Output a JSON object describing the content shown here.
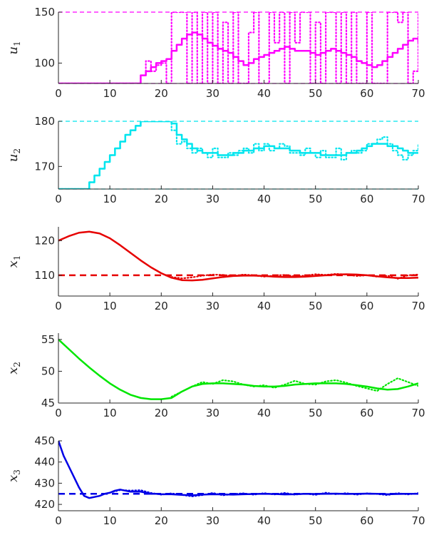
{
  "chart_data": [
    {
      "type": "line",
      "ylabel": "u",
      "ylabel_sub": "1",
      "xlim": [
        0,
        70
      ],
      "ylim": [
        80,
        150
      ],
      "xticks": [
        0,
        10,
        20,
        30,
        40,
        50,
        60,
        70
      ],
      "yticks": [
        100,
        150
      ],
      "color": "#ff00ff",
      "bounds": [
        80,
        150
      ],
      "series": [
        {
          "style": "solid",
          "step": true,
          "x": [
            0,
            1,
            2,
            3,
            4,
            5,
            6,
            7,
            8,
            9,
            10,
            11,
            12,
            13,
            14,
            15,
            16,
            17,
            18,
            19,
            20,
            21,
            22,
            23,
            24,
            25,
            26,
            27,
            28,
            29,
            30,
            31,
            32,
            33,
            34,
            35,
            36,
            37,
            38,
            39,
            40,
            41,
            42,
            43,
            44,
            45,
            46,
            47,
            48,
            49,
            50,
            51,
            52,
            53,
            54,
            55,
            56,
            57,
            58,
            59,
            60,
            61,
            62,
            63,
            64,
            65,
            66,
            67,
            68,
            69,
            70
          ],
          "values": [
            80,
            80,
            80,
            80,
            80,
            80,
            80,
            80,
            80,
            80,
            80,
            80,
            80,
            80,
            80,
            80,
            88,
            92,
            96,
            100,
            102,
            104,
            112,
            118,
            124,
            128,
            130,
            128,
            124,
            120,
            117,
            114,
            112,
            110,
            106,
            102,
            98,
            100,
            104,
            106,
            108,
            110,
            112,
            114,
            116,
            114,
            112,
            112,
            112,
            110,
            108,
            110,
            112,
            114,
            112,
            110,
            108,
            106,
            102,
            100,
            98,
            96,
            98,
            102,
            106,
            110,
            114,
            118,
            122,
            124,
            120
          ]
        },
        {
          "style": "dotted",
          "step": true,
          "x": [
            0,
            1,
            2,
            3,
            4,
            5,
            6,
            7,
            8,
            9,
            10,
            11,
            12,
            13,
            14,
            15,
            16,
            17,
            18,
            19,
            20,
            21,
            22,
            23,
            24,
            25,
            26,
            27,
            28,
            29,
            30,
            31,
            32,
            33,
            34,
            35,
            36,
            37,
            38,
            39,
            40,
            41,
            42,
            43,
            44,
            45,
            46,
            47,
            48,
            49,
            50,
            51,
            52,
            53,
            54,
            55,
            56,
            57,
            58,
            59,
            60,
            61,
            62,
            63,
            64,
            65,
            66,
            67,
            68,
            69,
            70
          ],
          "values": [
            80,
            80,
            80,
            80,
            80,
            80,
            80,
            80,
            80,
            80,
            80,
            80,
            80,
            80,
            80,
            80,
            88,
            102,
            92,
            98,
            100,
            80,
            150,
            150,
            150,
            80,
            150,
            80,
            150,
            80,
            150,
            80,
            140,
            80,
            150,
            80,
            80,
            130,
            150,
            80,
            80,
            150,
            120,
            150,
            80,
            150,
            120,
            150,
            150,
            80,
            140,
            80,
            150,
            150,
            80,
            150,
            80,
            150,
            80,
            80,
            150,
            80,
            80,
            80,
            150,
            150,
            140,
            150,
            80,
            92,
            150
          ]
        }
      ]
    },
    {
      "type": "line",
      "ylabel": "u",
      "ylabel_sub": "2",
      "xlim": [
        0,
        70
      ],
      "ylim": [
        165,
        180
      ],
      "xticks": [
        0,
        10,
        20,
        30,
        40,
        50,
        60,
        70
      ],
      "yticks": [
        170,
        180
      ],
      "color": "#00e5ee",
      "bounds": [
        165,
        180
      ],
      "series": [
        {
          "style": "solid",
          "step": true,
          "x": [
            0,
            1,
            2,
            3,
            4,
            5,
            6,
            7,
            8,
            9,
            10,
            11,
            12,
            13,
            14,
            15,
            16,
            17,
            18,
            19,
            20,
            21,
            22,
            23,
            24,
            25,
            26,
            27,
            28,
            29,
            30,
            31,
            32,
            33,
            34,
            35,
            36,
            37,
            38,
            39,
            40,
            41,
            42,
            43,
            44,
            45,
            46,
            47,
            48,
            49,
            50,
            51,
            52,
            53,
            54,
            55,
            56,
            57,
            58,
            59,
            60,
            61,
            62,
            63,
            64,
            65,
            66,
            67,
            68,
            69,
            70
          ],
          "values": [
            165,
            165,
            165,
            165,
            165,
            165,
            166.5,
            168,
            169.5,
            171,
            172.5,
            174,
            175.5,
            177,
            178,
            179,
            180,
            180,
            180,
            180,
            180,
            180,
            179.5,
            177,
            176,
            175,
            174,
            173.5,
            173,
            173,
            173,
            172.5,
            172.5,
            172.5,
            173,
            173,
            173.5,
            173.5,
            174,
            174,
            174.5,
            174.5,
            174,
            174,
            174,
            173.5,
            173.5,
            173,
            173,
            173,
            173,
            172.5,
            172.5,
            172.5,
            172.5,
            172.5,
            173,
            173,
            173.5,
            174,
            174.5,
            175,
            175,
            175,
            174.5,
            174.5,
            174,
            173.5,
            173,
            173,
            173
          ]
        },
        {
          "style": "dotted",
          "step": true,
          "x": [
            0,
            1,
            2,
            3,
            4,
            5,
            6,
            7,
            8,
            9,
            10,
            11,
            12,
            13,
            14,
            15,
            16,
            17,
            18,
            19,
            20,
            21,
            22,
            23,
            24,
            25,
            26,
            27,
            28,
            29,
            30,
            31,
            32,
            33,
            34,
            35,
            36,
            37,
            38,
            39,
            40,
            41,
            42,
            43,
            44,
            45,
            46,
            47,
            48,
            49,
            50,
            51,
            52,
            53,
            54,
            55,
            56,
            57,
            58,
            59,
            60,
            61,
            62,
            63,
            64,
            65,
            66,
            67,
            68,
            69,
            70
          ],
          "values": [
            165,
            165,
            165,
            165,
            165,
            165,
            166.5,
            168,
            169.5,
            171,
            172.5,
            174,
            175.5,
            177,
            178,
            179,
            180,
            180,
            180,
            180,
            180,
            180,
            178,
            175,
            175.5,
            174,
            173,
            174,
            173,
            172,
            174,
            172,
            172,
            173,
            172.5,
            173.5,
            174,
            173,
            175,
            173.5,
            175,
            173.5,
            174,
            175,
            174.5,
            173,
            173,
            172.5,
            174,
            173,
            172,
            173.5,
            172,
            172,
            174,
            171.5,
            173,
            173.5,
            173,
            173.5,
            175,
            175,
            176,
            176.5,
            175,
            173.5,
            172.5,
            171.5,
            172.5,
            173.5,
            175
          ]
        }
      ]
    },
    {
      "type": "line",
      "ylabel": "x",
      "ylabel_sub": "1",
      "xlim": [
        0,
        70
      ],
      "ylim": [
        104,
        124
      ],
      "xticks": [
        0,
        10,
        20,
        30,
        40,
        50,
        60,
        70
      ],
      "yticks": [
        110,
        120
      ],
      "color": "#e60000",
      "setpoint": 110,
      "series": [
        {
          "style": "solid",
          "step": false,
          "x": [
            0,
            2,
            4,
            6,
            8,
            10,
            12,
            14,
            16,
            18,
            20,
            22,
            24,
            26,
            28,
            30,
            32,
            34,
            36,
            38,
            40,
            42,
            44,
            46,
            48,
            50,
            52,
            54,
            56,
            58,
            60,
            62,
            64,
            66,
            68,
            70
          ],
          "values": [
            120,
            121.3,
            122.3,
            122.6,
            122.1,
            120.7,
            118.7,
            116.5,
            114.3,
            112.3,
            110.6,
            109.3,
            108.6,
            108.5,
            108.7,
            109.1,
            109.5,
            109.8,
            109.9,
            109.9,
            109.8,
            109.6,
            109.5,
            109.5,
            109.6,
            109.8,
            110.0,
            110.2,
            110.3,
            110.2,
            110.0,
            109.7,
            109.4,
            109.2,
            109.2,
            109.3
          ]
        },
        {
          "style": "dotted",
          "step": false,
          "x": [
            22,
            24,
            26,
            28,
            30,
            32,
            34,
            36,
            38,
            40,
            42,
            44,
            46,
            48,
            50,
            52,
            54,
            56,
            58,
            60,
            62,
            64,
            66,
            68,
            70
          ],
          "values": [
            109.5,
            109.1,
            109.4,
            109.9,
            110.2,
            110.1,
            109.8,
            110.2,
            110.0,
            109.6,
            109.9,
            110.1,
            109.7,
            109.9,
            110.3,
            110.1,
            110.4,
            110.2,
            109.8,
            110.0,
            109.6,
            109.9,
            109.0,
            110.0,
            110.2
          ]
        }
      ]
    },
    {
      "type": "line",
      "ylabel": "x",
      "ylabel_sub": "2",
      "xlim": [
        0,
        70
      ],
      "ylim": [
        45,
        56
      ],
      "xticks": [
        0,
        10,
        20,
        30,
        40,
        50,
        60,
        70
      ],
      "yticks": [
        45,
        50,
        55
      ],
      "color": "#00e600",
      "series": [
        {
          "style": "solid",
          "step": false,
          "x": [
            0,
            2,
            4,
            6,
            8,
            10,
            12,
            14,
            16,
            18,
            20,
            22,
            24,
            26,
            28,
            30,
            32,
            34,
            36,
            38,
            40,
            42,
            44,
            46,
            48,
            50,
            52,
            54,
            56,
            58,
            60,
            62,
            64,
            66,
            68,
            70
          ],
          "values": [
            55,
            53.5,
            52,
            50.6,
            49.3,
            48.1,
            47.1,
            46.3,
            45.8,
            45.6,
            45.6,
            45.8,
            46.8,
            47.6,
            48.0,
            48.1,
            48.1,
            48.0,
            47.9,
            47.7,
            47.6,
            47.6,
            47.7,
            47.9,
            48.0,
            48.1,
            48.1,
            48.1,
            48.0,
            47.8,
            47.6,
            47.3,
            47.1,
            47.2,
            47.6,
            48.1
          ]
        },
        {
          "style": "dotted",
          "step": false,
          "x": [
            22,
            24,
            26,
            28,
            30,
            32,
            34,
            36,
            38,
            40,
            42,
            44,
            46,
            48,
            50,
            52,
            54,
            56,
            58,
            60,
            62,
            64,
            66,
            68,
            70
          ],
          "values": [
            46.0,
            46.8,
            47.6,
            48.3,
            48.0,
            48.6,
            48.4,
            47.9,
            47.6,
            47.8,
            47.4,
            47.9,
            48.5,
            48.0,
            47.9,
            48.4,
            48.6,
            48.2,
            47.7,
            47.3,
            46.9,
            48.0,
            48.9,
            48.3,
            47.7
          ]
        }
      ]
    },
    {
      "type": "line",
      "ylabel": "x",
      "ylabel_sub": "3",
      "xlim": [
        0,
        70
      ],
      "ylim": [
        417,
        450
      ],
      "xticks": [
        0,
        10,
        20,
        30,
        40,
        50,
        60,
        70
      ],
      "yticks": [
        420,
        430,
        440,
        450
      ],
      "color": "#0000e6",
      "setpoint": 425,
      "series": [
        {
          "style": "solid",
          "step": false,
          "x": [
            0,
            1,
            2,
            3,
            4,
            5,
            6,
            7,
            8,
            9,
            10,
            11,
            12,
            13,
            14,
            15,
            16,
            17,
            18,
            19,
            20,
            22,
            24,
            26,
            28,
            30,
            32,
            34,
            36,
            38,
            40,
            42,
            44,
            46,
            48,
            50,
            52,
            54,
            56,
            58,
            60,
            62,
            64,
            66,
            68,
            70
          ],
          "values": [
            450,
            443,
            438,
            433,
            428,
            424,
            423,
            423.5,
            424,
            425,
            425.5,
            426.5,
            427,
            426.5,
            426,
            426,
            426,
            425.5,
            425,
            425,
            424.8,
            424.8,
            424.5,
            424.3,
            424.6,
            424.8,
            424.7,
            424.6,
            424.8,
            424.9,
            425,
            424.9,
            424.7,
            424.8,
            425,
            424.9,
            425,
            425.1,
            424.9,
            425,
            425.1,
            425,
            424.8,
            424.9,
            425,
            425
          ]
        },
        {
          "style": "dotted",
          "step": false,
          "x": [
            10,
            12,
            14,
            16,
            18,
            20,
            22,
            24,
            26,
            28,
            30,
            32,
            34,
            36,
            38,
            40,
            42,
            44,
            46,
            48,
            50,
            52,
            54,
            56,
            58,
            60,
            62,
            64,
            66,
            68,
            70
          ],
          "values": [
            425.5,
            426.8,
            426.5,
            426.7,
            425.4,
            424.6,
            425.2,
            424.5,
            423.8,
            424.4,
            425.4,
            424.3,
            424.9,
            425.2,
            424.6,
            425.3,
            424.7,
            425.4,
            424.6,
            425.1,
            424.5,
            425.5,
            424.8,
            425.3,
            424.6,
            425.2,
            424.9,
            424.4,
            425.3,
            424.7,
            425.3
          ]
        }
      ]
    }
  ]
}
